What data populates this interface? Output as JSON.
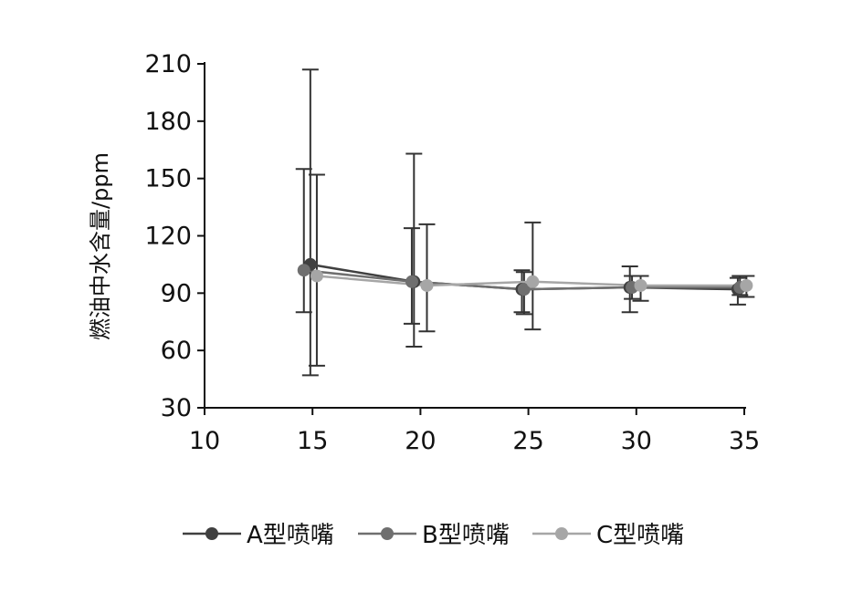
{
  "chart_data": {
    "type": "line",
    "xlabel": "",
    "ylabel": "燃油中水含量/ppm",
    "xlim": [
      10,
      35
    ],
    "ylim": [
      30,
      210
    ],
    "xticks": [
      "10",
      "15",
      "20",
      "25",
      "30",
      "35"
    ],
    "yticks": [
      "30",
      "60",
      "90",
      "120",
      "150",
      "180",
      "210"
    ],
    "grid": false,
    "legend_position": "bottom",
    "series": [
      {
        "name": "A型喷嘴",
        "color": "#404040",
        "x": [
          14.9,
          19.7,
          24.7,
          29.7,
          34.7
        ],
        "y": [
          105,
          96,
          92,
          93,
          92
        ],
        "err_low": [
          47,
          62,
          80,
          80,
          84
        ],
        "err_high": [
          207,
          163,
          102,
          104,
          98
        ]
      },
      {
        "name": "B型喷嘴",
        "color": "#6f6f6f",
        "x": [
          14.6,
          19.6,
          24.8,
          29.8,
          34.8
        ],
        "y": [
          102,
          96,
          92,
          93,
          93
        ],
        "err_low": [
          80,
          74,
          79,
          87,
          89
        ],
        "err_high": [
          155,
          124,
          101,
          99,
          99
        ]
      },
      {
        "name": "C型喷嘴",
        "color": "#a6a6a6",
        "x": [
          15.2,
          20.3,
          25.2,
          30.2,
          35.1
        ],
        "y": [
          99,
          94,
          96,
          94,
          94
        ],
        "err_low": [
          52,
          70,
          71,
          86,
          88
        ],
        "err_high": [
          152,
          126,
          127,
          99,
          99
        ]
      }
    ]
  }
}
